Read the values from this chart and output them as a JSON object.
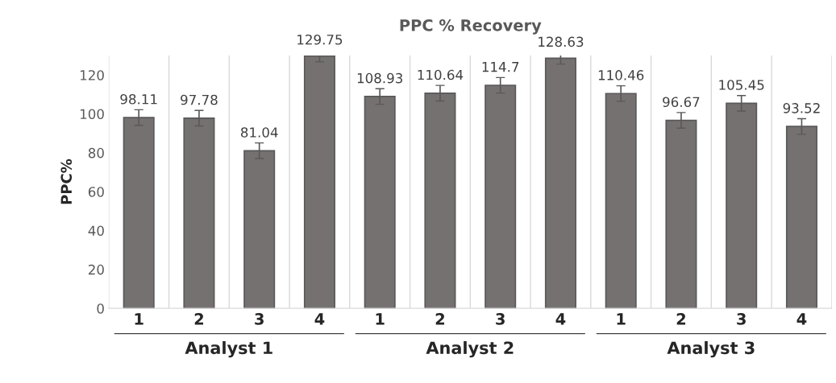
{
  "chart_data": {
    "type": "bar",
    "title": "PPC % Recovery",
    "ylabel": "PPC%",
    "categories": [
      "1",
      "2",
      "3",
      "4",
      "1",
      "2",
      "3",
      "4",
      "1",
      "2",
      "3",
      "4"
    ],
    "values": [
      98.11,
      97.78,
      81.04,
      129.75,
      108.93,
      110.64,
      114.7,
      128.63,
      110.46,
      96.67,
      105.45,
      93.52
    ],
    "errors": [
      4,
      4,
      4,
      3,
      4,
      4,
      4,
      3,
      4,
      4,
      4,
      4
    ],
    "color": "#767171",
    "data_labels": true,
    "annotations": [
      "Analyst 1",
      "Analyst 2",
      "Analyst 3"
    ],
    "ylim": [
      0,
      130
    ],
    "yticks": [
      0,
      20,
      40,
      60,
      80,
      100,
      120
    ],
    "grid": "x",
    "legend": false
  }
}
